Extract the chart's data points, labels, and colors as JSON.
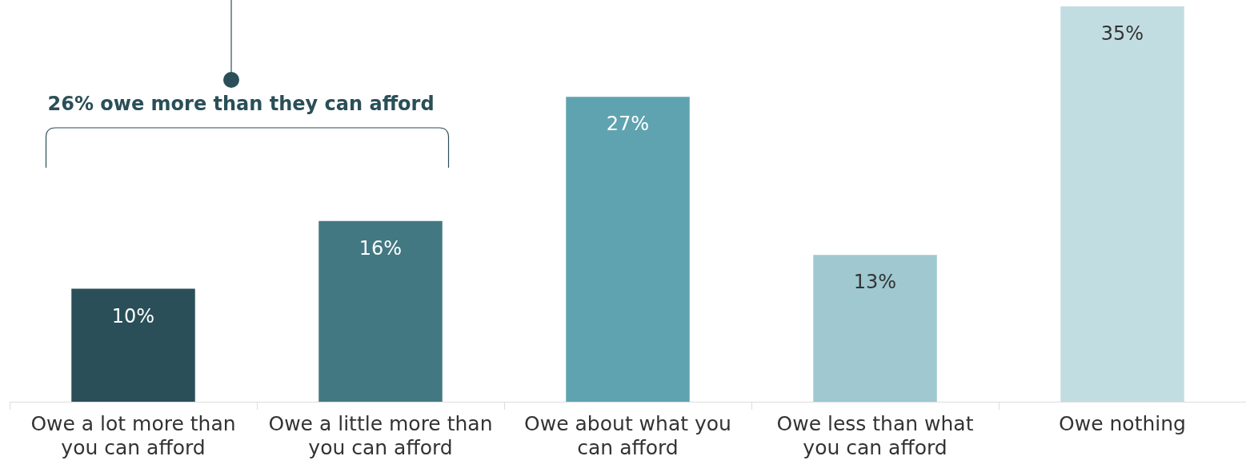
{
  "chart_data": {
    "type": "bar",
    "categories": [
      "Owe a lot more than you can afford",
      "Owe a little more than you can afford",
      "Owe about what you can afford",
      "Owe less than what you can afford",
      "Owe nothing"
    ],
    "values": [
      10,
      16,
      27,
      13,
      35
    ],
    "value_labels": [
      "10%",
      "16%",
      "27%",
      "13%",
      "35%"
    ],
    "colors": [
      "#2a4f58",
      "#427882",
      "#5fa3b1",
      "#9fc8d0",
      "#c2dde1"
    ],
    "annotations": [
      "26% owe more than they can afford"
    ],
    "grid": false,
    "legend": false
  }
}
